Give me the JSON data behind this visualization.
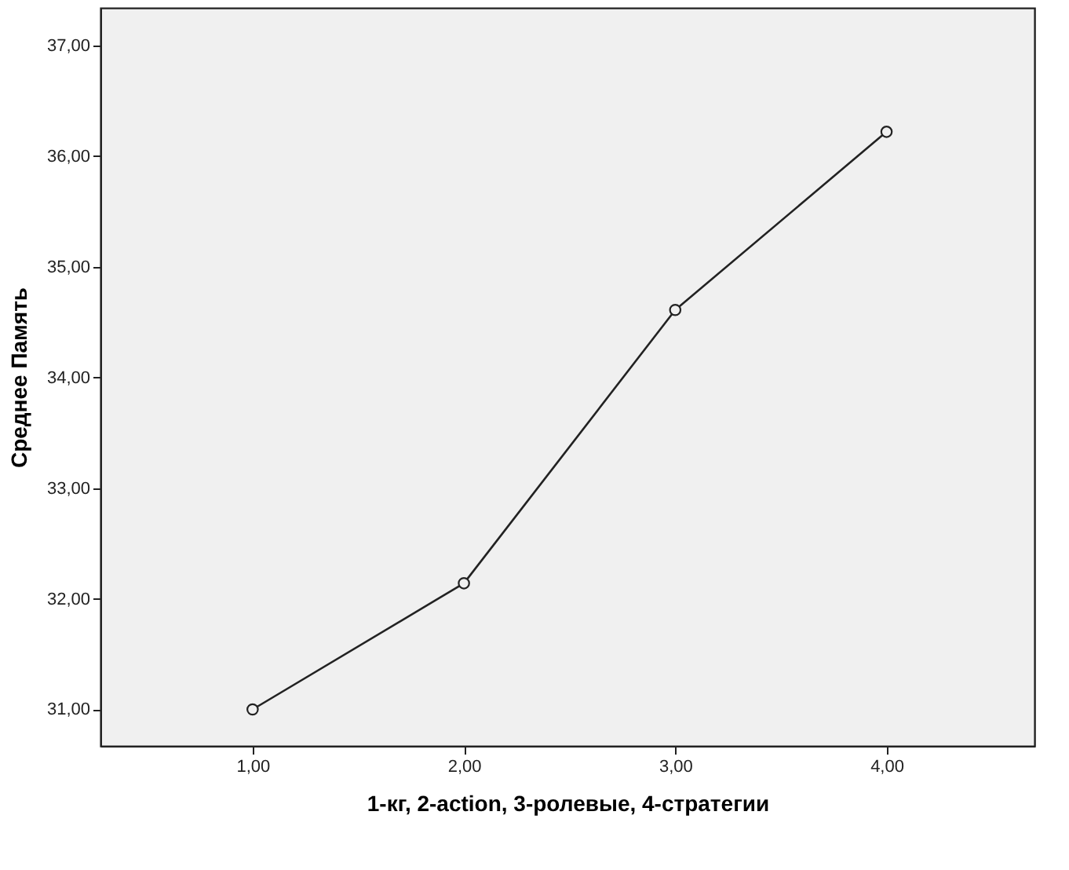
{
  "chart_data": {
    "type": "line",
    "xlabel": "1-кг, 2-action, 3-ролевые, 4-стратегии",
    "ylabel": "Среднее Память",
    "x": [
      1,
      2,
      3,
      4
    ],
    "series": [
      {
        "color": "#222222",
        "values": [
          31.0,
          32.14,
          34.61,
          36.22
        ]
      }
    ],
    "xlim": [
      0.28,
      4.7
    ],
    "ylim": [
      30.67,
      37.34
    ],
    "xticks": [
      {
        "value": 1,
        "label": "1,00"
      },
      {
        "value": 2,
        "label": "2,00"
      },
      {
        "value": 3,
        "label": "3,00"
      },
      {
        "value": 4,
        "label": "4,00"
      }
    ],
    "yticks": [
      {
        "value": 31,
        "label": "31,00"
      },
      {
        "value": 32,
        "label": "32,00"
      },
      {
        "value": 33,
        "label": "33,00"
      },
      {
        "value": 34,
        "label": "34,00"
      },
      {
        "value": 35,
        "label": "35,00"
      },
      {
        "value": 36,
        "label": "36,00"
      },
      {
        "value": 37,
        "label": "37,00"
      }
    ],
    "marker": "circle",
    "line_style": "solid",
    "grid": false
  }
}
